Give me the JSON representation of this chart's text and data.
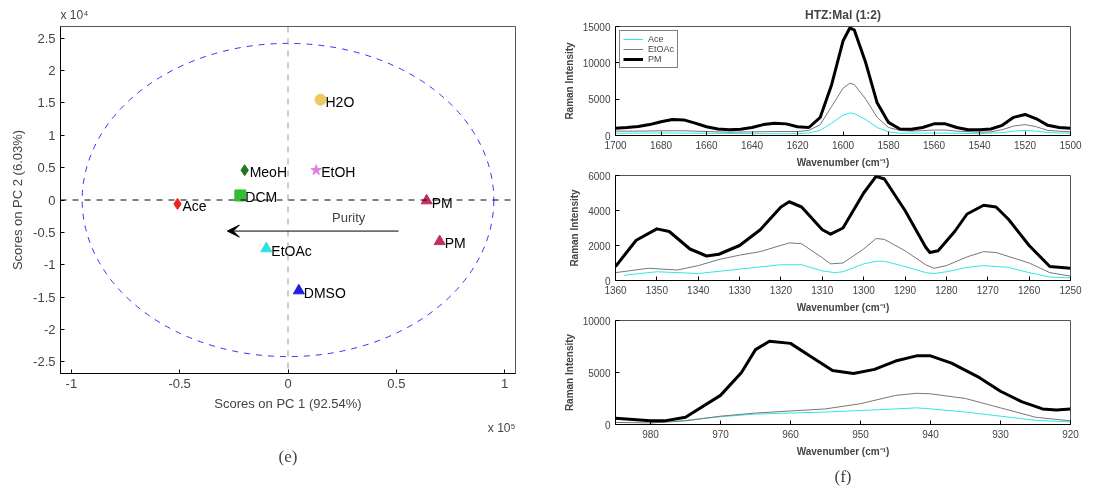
{
  "chart_data": [
    {
      "type": "scatter",
      "xlabel": "Scores on PC 1 (92.54%)",
      "ylabel": "Scores on PC 2 (6.03%)",
      "xlim": [
        -1.05,
        1.05
      ],
      "ylim": [
        -2.68,
        2.68
      ],
      "xticks": [
        -1,
        -0.5,
        0,
        0.5,
        1
      ],
      "yticks": [
        -2.5,
        -2,
        -1.5,
        -1,
        -0.5,
        0,
        0.5,
        1,
        1.5,
        2,
        2.5
      ],
      "grid": false,
      "legend": false,
      "annotations": [
        "x 10⁴",
        "Purity",
        "x 10⁵",
        "(e)"
      ],
      "ref_lines": [
        {
          "axis": "x",
          "value": 0,
          "color": "#999999",
          "line_style": "dashed"
        },
        {
          "axis": "y",
          "value": 0,
          "color": "#000000",
          "line_style": "dashed"
        }
      ],
      "series": [
        {
          "name": "Ace",
          "color": "#e8251f",
          "marker": "diamond",
          "x": [
            -0.51
          ],
          "values": [
            -0.06
          ]
        },
        {
          "name": "DCM",
          "color": "#33bb33",
          "marker": "square",
          "x": [
            -0.22
          ],
          "values": [
            0.07
          ]
        },
        {
          "name": "MeoH",
          "color": "#1e7a1e",
          "marker": "diamond",
          "x": [
            -0.2
          ],
          "values": [
            0.46
          ]
        },
        {
          "name": "EtOH",
          "color": "#e080e0",
          "marker": "star",
          "x": [
            0.13
          ],
          "values": [
            0.46
          ]
        },
        {
          "name": "H2O",
          "color": "#f0c860",
          "marker": "circle",
          "x": [
            0.15
          ],
          "values": [
            1.55
          ]
        },
        {
          "name": "PM",
          "color": "#c0305a",
          "marker": "triangle",
          "x": [
            0.64
          ],
          "values": [
            -0.01
          ]
        },
        {
          "name": "PM",
          "color": "#c0305a",
          "marker": "triangle",
          "x": [
            0.7
          ],
          "values": [
            -0.64
          ]
        },
        {
          "name": "EtOAc",
          "color": "#30e0e0",
          "marker": "triangle",
          "x": [
            -0.1
          ],
          "values": [
            -0.75
          ]
        },
        {
          "name": "DMSO",
          "color": "#2020e0",
          "marker": "triangle",
          "x": [
            0.05
          ],
          "values": [
            -1.4
          ]
        }
      ]
    },
    {
      "type": "line",
      "title": "HTZ:Mal (1:2)",
      "xlabel": "Wavenumber (cm⁻¹)",
      "ylabel": "Raman Intensity",
      "xlim": [
        1700,
        1500
      ],
      "ylim": [
        0,
        15000
      ],
      "xticks": [
        1700,
        1680,
        1660,
        1640,
        1620,
        1600,
        1580,
        1560,
        1540,
        1520,
        1500
      ],
      "yticks": [
        0,
        5000,
        10000,
        15000
      ],
      "grid": false,
      "legend": "top left",
      "marker": "none",
      "series": [
        {
          "name": "Ace",
          "color": "#33e6e6",
          "x": [
            1700,
            1680,
            1660,
            1640,
            1620,
            1615,
            1610,
            1605,
            1600,
            1597,
            1595,
            1590,
            1585,
            1580,
            1575,
            1560,
            1550,
            1540,
            1530,
            1525,
            1520,
            1515,
            1510,
            1500
          ],
          "values": [
            300,
            350,
            300,
            250,
            250,
            350,
            700,
            1700,
            2800,
            3100,
            3000,
            2200,
            1100,
            500,
            300,
            350,
            300,
            250,
            400,
            600,
            700,
            600,
            400,
            300
          ]
        },
        {
          "name": "EtOAc",
          "color": "#777777",
          "x": [
            1700,
            1690,
            1680,
            1670,
            1660,
            1650,
            1640,
            1630,
            1620,
            1615,
            1610,
            1605,
            1600,
            1597,
            1595,
            1590,
            1585,
            1580,
            1575,
            1570,
            1560,
            1555,
            1550,
            1540,
            1535,
            1530,
            1525,
            1520,
            1515,
            1510,
            1500
          ],
          "values": [
            600,
            600,
            650,
            650,
            550,
            450,
            500,
            550,
            550,
            700,
            1500,
            4000,
            6500,
            7200,
            7000,
            5000,
            2500,
            1100,
            700,
            600,
            750,
            750,
            600,
            450,
            500,
            800,
            1300,
            1500,
            1200,
            700,
            500
          ]
        },
        {
          "name": "PM",
          "color": "#000000",
          "x": [
            1700,
            1695,
            1690,
            1685,
            1680,
            1675,
            1670,
            1665,
            1660,
            1655,
            1650,
            1645,
            1640,
            1635,
            1630,
            1625,
            1620,
            1615,
            1610,
            1605,
            1600,
            1597,
            1595,
            1590,
            1585,
            1580,
            1575,
            1570,
            1565,
            1560,
            1555,
            1550,
            1545,
            1540,
            1535,
            1530,
            1525,
            1520,
            1515,
            1510,
            1505,
            1500
          ],
          "values": [
            1000,
            1100,
            1250,
            1500,
            1900,
            2200,
            2150,
            1700,
            1200,
            900,
            800,
            850,
            1100,
            1500,
            1700,
            1600,
            1200,
            1100,
            2500,
            7000,
            13000,
            14800,
            14500,
            10000,
            4500,
            1800,
            900,
            850,
            1100,
            1600,
            1600,
            1100,
            800,
            800,
            900,
            1400,
            2500,
            2900,
            2300,
            1400,
            1100,
            1000
          ]
        }
      ]
    },
    {
      "type": "line",
      "xlabel": "Wavenumber (cm⁻¹)",
      "ylabel": "Raman Intensity",
      "xlim": [
        1360,
        1250
      ],
      "ylim": [
        0,
        6000
      ],
      "xticks": [
        1360,
        1350,
        1340,
        1330,
        1320,
        1310,
        1300,
        1290,
        1280,
        1270,
        1260,
        1250
      ],
      "yticks": [
        0,
        2000,
        4000,
        6000
      ],
      "grid": false,
      "legend": false,
      "marker": "none",
      "series": [
        {
          "color": "#33e6e6",
          "x": [
            1358,
            1350,
            1340,
            1330,
            1320,
            1315,
            1310,
            1307,
            1305,
            1300,
            1297,
            1295,
            1290,
            1285,
            1283,
            1280,
            1275,
            1271,
            1265,
            1260,
            1255,
            1250
          ],
          "values": [
            300,
            500,
            400,
            650,
            900,
            900,
            550,
            450,
            500,
            950,
            1100,
            1100,
            800,
            450,
            400,
            500,
            750,
            850,
            750,
            450,
            200,
            150
          ]
        },
        {
          "color": "#777777",
          "x": [
            1360,
            1352,
            1345,
            1340,
            1335,
            1330,
            1325,
            1318,
            1315,
            1310,
            1308,
            1305,
            1300,
            1297,
            1295,
            1290,
            1285,
            1283,
            1280,
            1275,
            1271,
            1268,
            1260,
            1255,
            1250
          ],
          "values": [
            450,
            700,
            600,
            850,
            1200,
            1450,
            1650,
            2150,
            2100,
            1300,
            950,
            1000,
            1800,
            2400,
            2350,
            1700,
            900,
            700,
            850,
            1350,
            1650,
            1600,
            1000,
            450,
            250
          ]
        },
        {
          "color": "#000000",
          "x": [
            1360,
            1355,
            1350,
            1347,
            1342,
            1338,
            1335,
            1330,
            1325,
            1320,
            1318,
            1315,
            1310,
            1308,
            1305,
            1300,
            1297,
            1295,
            1290,
            1285,
            1284,
            1282,
            1278,
            1275,
            1271,
            1268,
            1265,
            1260,
            1255,
            1250
          ],
          "values": [
            800,
            2300,
            2950,
            2800,
            1800,
            1400,
            1500,
            2000,
            2900,
            4200,
            4500,
            4200,
            2900,
            2650,
            3000,
            5000,
            5950,
            5800,
            4000,
            1900,
            1600,
            1700,
            2800,
            3800,
            4300,
            4200,
            3500,
            2000,
            800,
            700
          ]
        }
      ]
    },
    {
      "type": "line",
      "xlabel": "Wavenumber (cm⁻¹)",
      "ylabel": "Raman Intensity",
      "xlim": [
        985,
        920
      ],
      "ylim": [
        0,
        10000
      ],
      "xticks": [
        980,
        970,
        960,
        950,
        940,
        930,
        920
      ],
      "yticks": [
        0,
        5000,
        10000
      ],
      "grid": false,
      "legend": false,
      "marker": "none",
      "annotations": [
        "(f)"
      ],
      "series": [
        {
          "color": "#33e6e6",
          "x": [
            980,
            975,
            970,
            965,
            960,
            955,
            950,
            945,
            942,
            940,
            935,
            930,
            925,
            920
          ],
          "values": [
            150,
            400,
            750,
            1000,
            1100,
            1200,
            1350,
            1500,
            1600,
            1500,
            1200,
            800,
            400,
            250
          ]
        },
        {
          "color": "#777777",
          "x": [
            985,
            980,
            975,
            970,
            965,
            960,
            955,
            950,
            945,
            942,
            940,
            935,
            930,
            925,
            920
          ],
          "values": [
            200,
            150,
            350,
            800,
            1100,
            1300,
            1500,
            2000,
            2800,
            3000,
            2950,
            2500,
            1600,
            700,
            350
          ]
        },
        {
          "color": "#000000",
          "x": [
            985,
            980,
            978,
            975,
            970,
            967,
            965,
            963,
            960,
            957,
            954,
            951,
            948,
            945,
            942,
            940,
            937,
            933,
            930,
            927,
            924,
            922,
            920
          ],
          "values": [
            600,
            350,
            350,
            700,
            2800,
            5000,
            7200,
            8000,
            7800,
            6500,
            5200,
            4900,
            5300,
            6100,
            6600,
            6600,
            5900,
            4500,
            3200,
            2200,
            1500,
            1400,
            1500
          ]
        }
      ]
    }
  ]
}
